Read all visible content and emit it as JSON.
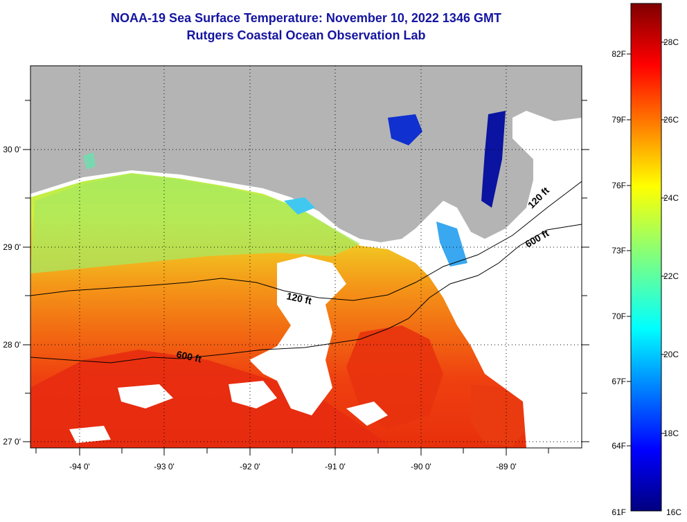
{
  "header": {
    "title_line1": "NOAA-19 Sea Surface Temperature:  November 10, 2022 1346 GMT",
    "title_line2": "Rutgers Coastal Ocean Observation Lab"
  },
  "map": {
    "lon_labels": [
      "-94 0'",
      "-93 0'",
      "-92 0'",
      "-91 0'",
      "-90 0'",
      "-89 0'"
    ],
    "lat_labels": [
      "30 0'",
      "29 0'",
      "28 0'",
      "27 0'"
    ],
    "isobath_labels": {
      "shelf_120_west": "120 ft",
      "shelf_120_east": "120 ft",
      "slope_600_west": "600 ft",
      "slope_600_east": "600 ft"
    },
    "colors": {
      "land": "#b4b4b4",
      "cloud": "#ffffff",
      "isobath": "#000000",
      "grid_dots": "#000000"
    }
  },
  "colorbar": {
    "fahrenheit_labels": [
      "82F",
      "79F",
      "76F",
      "73F",
      "70F",
      "67F",
      "64F",
      "61F"
    ],
    "celsius_labels": [
      "28C",
      "26C",
      "24C",
      "22C",
      "20C",
      "18C",
      "16C"
    ],
    "range_c": [
      16,
      29
    ],
    "colormap": "jet"
  }
}
